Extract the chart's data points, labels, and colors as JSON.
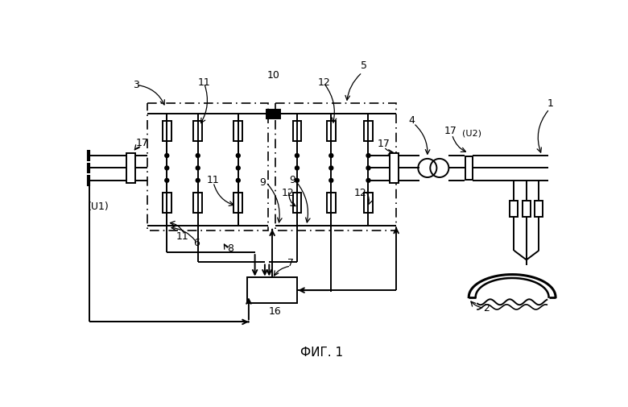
{
  "bg_color": "#ffffff",
  "lc": "#000000",
  "title": "ФИГ. 1"
}
